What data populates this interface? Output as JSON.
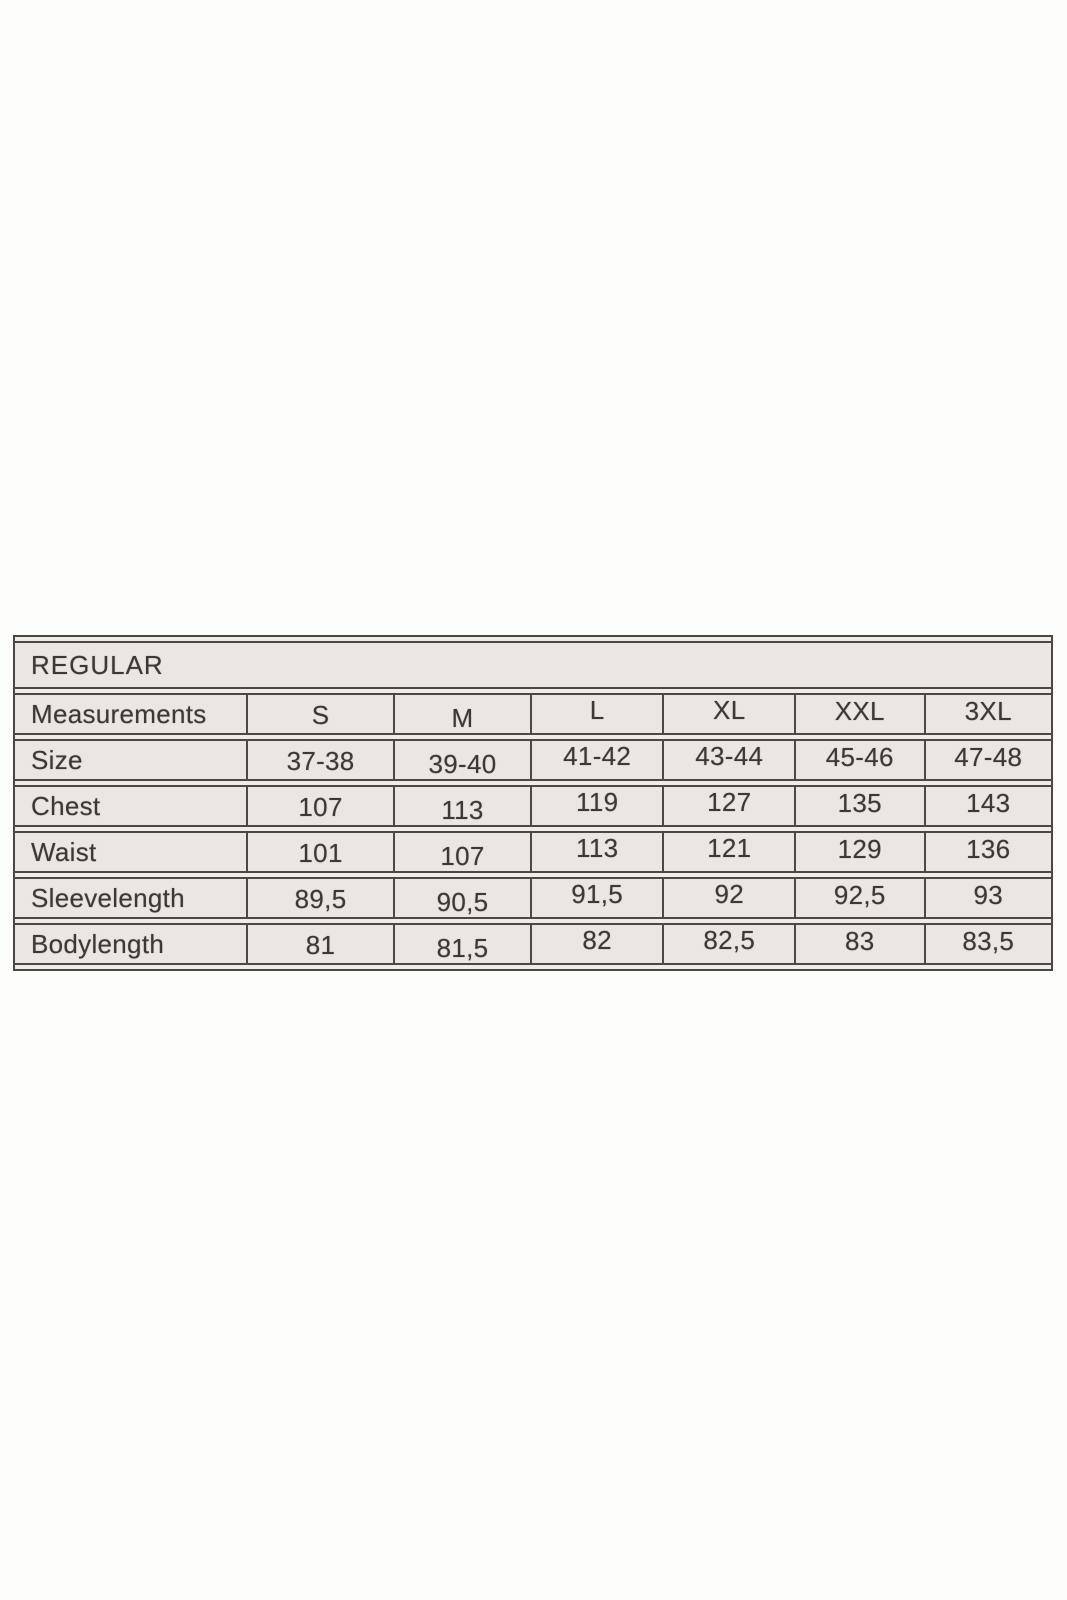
{
  "chart_data": {
    "type": "table",
    "title": "REGULAR",
    "header_label": "Measurements",
    "columns": [
      "S",
      "M",
      "L",
      "XL",
      "XXL",
      "3XL"
    ],
    "rows": [
      {
        "label": "Size",
        "values": [
          "37-38",
          "39-40",
          "41-42",
          "43-44",
          "45-46",
          "47-48"
        ]
      },
      {
        "label": "Chest",
        "values": [
          "107",
          "113",
          "119",
          "127",
          "135",
          "143"
        ]
      },
      {
        "label": "Waist",
        "values": [
          "101",
          "107",
          "113",
          "121",
          "129",
          "136"
        ]
      },
      {
        "label": "Sleevelength",
        "values": [
          "89,5",
          "90,5",
          "91,5",
          "92",
          "92,5",
          "93"
        ]
      },
      {
        "label": "Bodylength",
        "values": [
          "81",
          "81,5",
          "82",
          "82,5",
          "83",
          "83,5"
        ]
      }
    ],
    "layout": {
      "column_width_percents": [
        22.3,
        14.2,
        13.2,
        12.8,
        12.7,
        12.5,
        12.3
      ],
      "grid": "on",
      "title_row_spans_all_columns": true
    }
  },
  "colors": {
    "page_background": "#fdfdfc",
    "cell_background": "#e8e5e1",
    "row_gap_background": "#eeebe7",
    "border": "#4d4843",
    "text": "#3d3935"
  }
}
